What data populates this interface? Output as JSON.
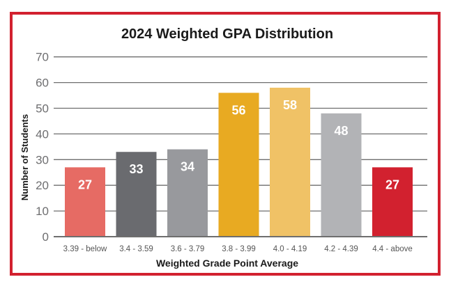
{
  "chart_data": {
    "type": "bar",
    "title": "2024 Weighted GPA Distribution",
    "xlabel": "Weighted Grade Point Average",
    "ylabel": "Number of Students",
    "categories": [
      "3.39 - below",
      "3.4 - 3.59",
      "3.6 - 3.79",
      "3.8 - 3.99",
      "4.0 - 4.19",
      "4.2 - 4.39",
      "4.4 - above"
    ],
    "values": [
      27,
      33,
      34,
      56,
      58,
      48,
      27
    ],
    "colors": [
      "#e66b64",
      "#6a6b6f",
      "#98999d",
      "#e8aa22",
      "#f0c266",
      "#b2b3b6",
      "#d2212f"
    ],
    "ylim": [
      0,
      70
    ],
    "yticks": [
      0,
      10,
      20,
      30,
      40,
      50,
      60,
      70
    ],
    "grid": true,
    "data_labels": true,
    "frame_color": "#d2212f"
  }
}
